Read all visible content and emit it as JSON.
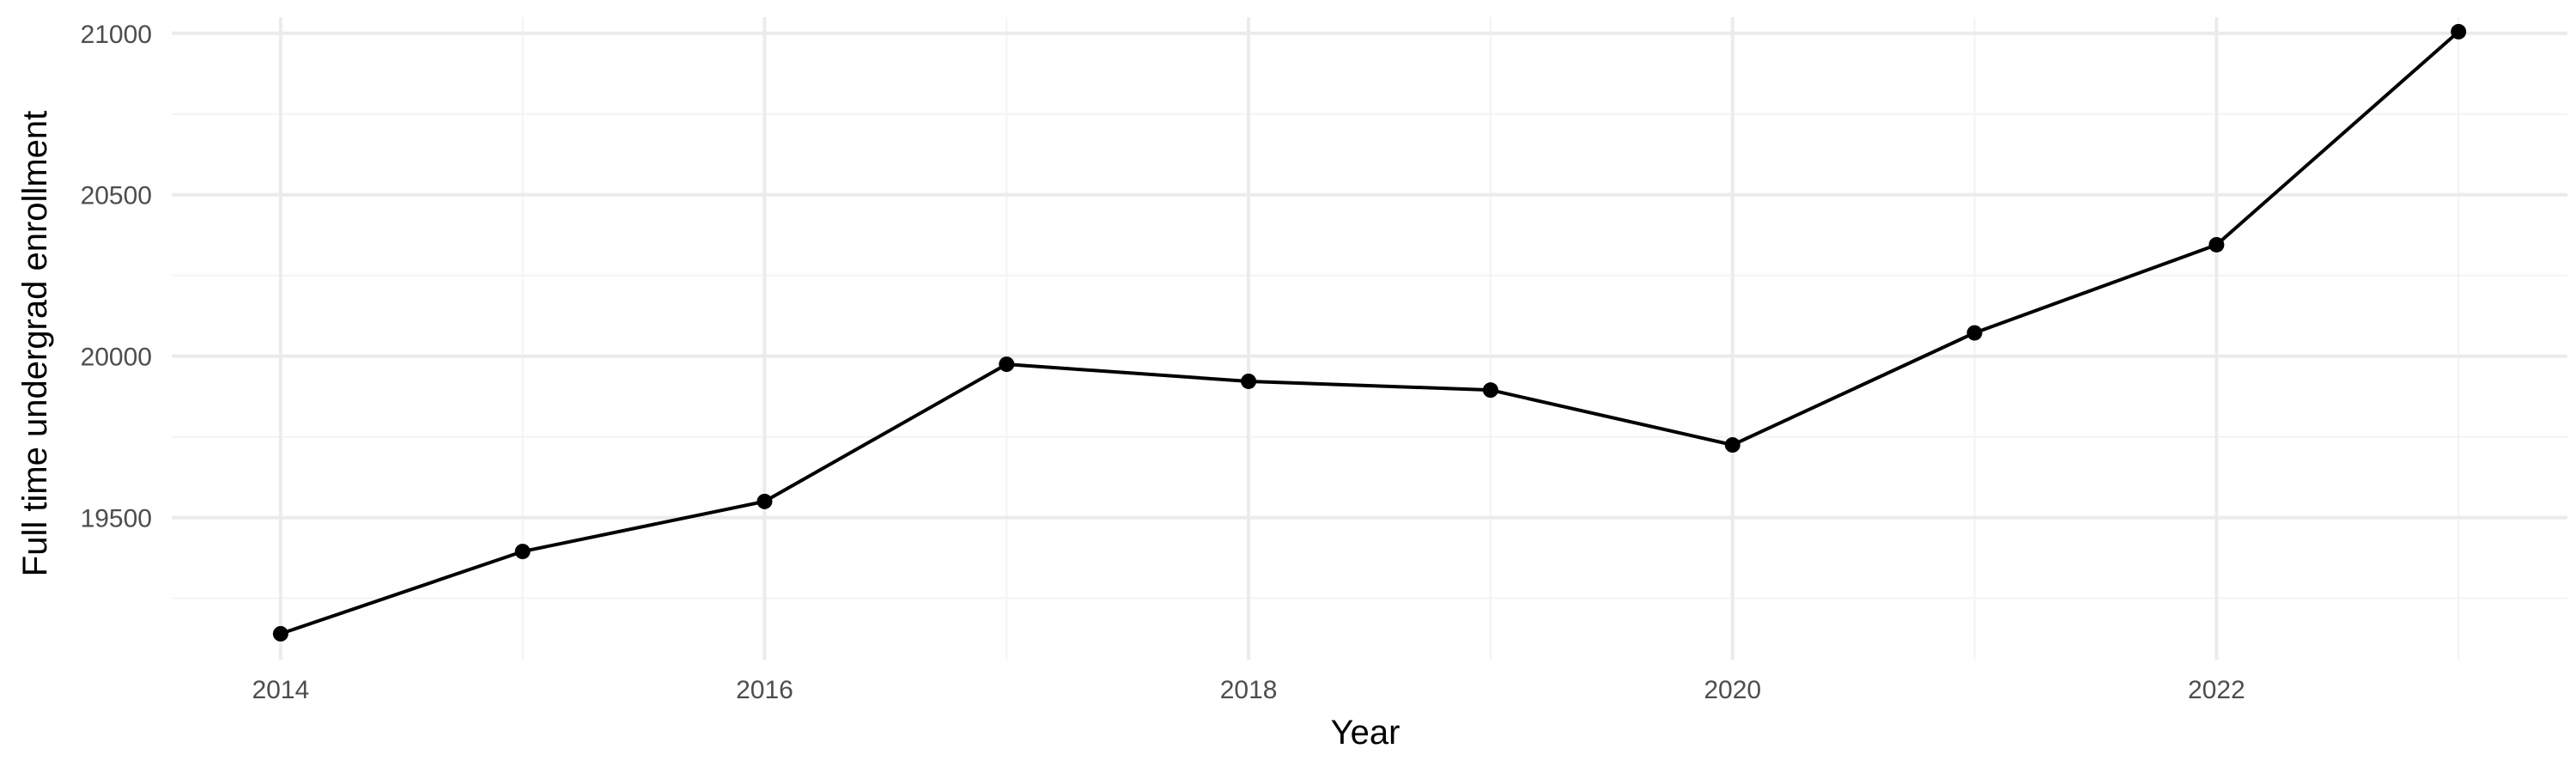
{
  "chart_data": {
    "type": "line",
    "title": "",
    "xlabel": "Year",
    "ylabel": "Full time undergrad enrollment",
    "x": [
      2014,
      2015,
      2016,
      2017,
      2018,
      2019,
      2020,
      2021,
      2022,
      2023
    ],
    "series": [
      {
        "values": [
          19140,
          19395,
          19550,
          19975,
          19922,
          19895,
          19725,
          20072,
          20345,
          21005
        ]
      }
    ],
    "xlim": [
      2013.55,
      2023.45
    ],
    "ylim": [
      19060,
      21050
    ],
    "x_ticks": [
      2014,
      2016,
      2018,
      2020,
      2022
    ],
    "x_tick_labels": [
      "2014",
      "2016",
      "2018",
      "2020",
      "2022"
    ],
    "y_ticks": [
      19500,
      20000,
      20500,
      21000
    ],
    "y_tick_labels": [
      "19500",
      "20000",
      "20500",
      "21000"
    ],
    "grid": true,
    "legend": "none",
    "colors": {
      "line": "#000000",
      "grid_major": "#ebebeb",
      "grid_minor": "#f4f4f4",
      "tick_text": "#4d4d4d",
      "background": "#ffffff"
    }
  }
}
